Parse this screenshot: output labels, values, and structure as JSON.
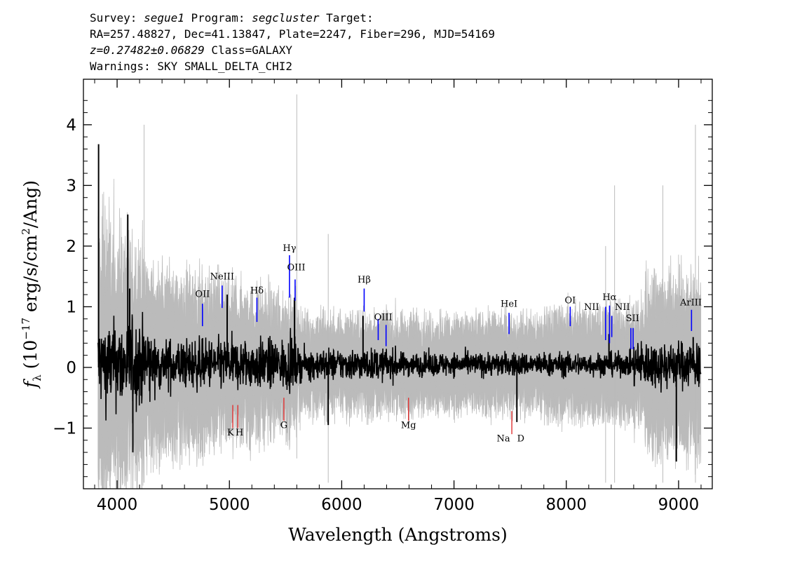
{
  "header": {
    "line1_a": "Survey: ",
    "line1_survey": "segue1",
    "line1_b": " Program: ",
    "line1_program": "segcluster",
    "line1_c": " Target:",
    "line2": "RA=257.48827, Dec=41.13847, Plate=2247, Fiber=296, MJD=54169",
    "line3_z": "z=0.27482±0.06829",
    "line3_class": " Class=GALAXY",
    "line4": "Warnings: SKY SMALL_DELTA_CHI2"
  },
  "chart_data": {
    "type": "line",
    "xlabel": "Wavelength (Angstroms)",
    "ylabel_f": "f",
    "ylabel_sub": "λ",
    "ylabel_rest_a": " (10",
    "ylabel_exp1": "−17",
    "ylabel_rest_b": " erg/s/cm",
    "ylabel_exp2": "2",
    "ylabel_rest_c": "/Ang)",
    "xlim": [
      3700,
      9300
    ],
    "ylim": [
      -2.0,
      4.75
    ],
    "x_ticks": [
      4000,
      5000,
      6000,
      7000,
      8000,
      9000
    ],
    "x_tick_labels": [
      "4000",
      "5000",
      "6000",
      "7000",
      "8000",
      "9000"
    ],
    "y_ticks": [
      -1,
      0,
      1,
      2,
      3,
      4
    ],
    "y_tick_labels": [
      "−1",
      "0",
      "1",
      "2",
      "3",
      "4"
    ],
    "spectrum_range": [
      3830,
      9200
    ],
    "series": [
      {
        "color": "#bbbbbb",
        "role": "error band"
      },
      {
        "color": "#000000",
        "role": "flux"
      }
    ],
    "spikes": [
      {
        "x": 3835,
        "y": 3.68
      },
      {
        "x": 4095,
        "y": 2.52
      },
      {
        "x": 4112,
        "y": 1.3
      },
      {
        "x": 4980,
        "y": 1.2
      },
      {
        "x": 5580,
        "y": 1.15
      },
      {
        "x": 6190,
        "y": 0.85
      },
      {
        "x": 8380,
        "y": 0.55
      },
      {
        "x": 9130,
        "y": 0.5
      },
      {
        "x": 4140,
        "y": -1.4
      },
      {
        "x": 5880,
        "y": -0.95
      },
      {
        "x": 8980,
        "y": -1.55
      },
      {
        "x": 7560,
        "y": -0.9
      }
    ],
    "emission_lines": [
      {
        "label": "OII",
        "x": 4760,
        "y0": 0.68,
        "y1": 1.05,
        "ty": 1.16
      },
      {
        "label": "NeIII",
        "x": 4935,
        "y0": 0.98,
        "y1": 1.35,
        "ty": 1.45
      },
      {
        "label": "Hδ",
        "x": 5245,
        "y0": 0.75,
        "y1": 1.15,
        "ty": 1.22
      },
      {
        "label": "Hγ",
        "x": 5535,
        "y0": 1.15,
        "y1": 1.85,
        "ty": 1.92
      },
      {
        "label": "OIII",
        "x": 5585,
        "y0": 1.1,
        "y1": 1.45,
        "ty": 1.6
      },
      {
        "label": "Hβ",
        "x": 6200,
        "y0": 0.92,
        "y1": 1.3,
        "ty": 1.4
      },
      {
        "label": "OIII",
        "x": 6325,
        "y0": 0.45,
        "y1": 0.8,
        "ty": 0.78
      },
      {
        "label": "OIII",
        "x": 6395,
        "y0": 0.35,
        "y1": 0.7,
        "ty": 0.78
      },
      {
        "label": "HeI",
        "x": 7490,
        "y0": 0.55,
        "y1": 0.9,
        "ty": 1.0
      },
      {
        "label": "OI",
        "x": 8035,
        "y0": 0.68,
        "y1": 1.0,
        "ty": 1.06
      },
      {
        "label": "NII",
        "x": 8350,
        "y0": 0.45,
        "y1": 1.0,
        "ty": 0.95
      },
      {
        "label": "Hα",
        "x": 8385,
        "y0": 0.4,
        "y1": 1.02,
        "ty": 1.11
      },
      {
        "label": "NII",
        "x": 8405,
        "y0": 0.5,
        "y1": 0.85,
        "ty": 0.95
      },
      {
        "label": "SII",
        "x": 8575,
        "y0": 0.3,
        "y1": 0.65,
        "ty": 0.76
      },
      {
        "label": "SII",
        "x": 8595,
        "y0": 0.3,
        "y1": 0.65,
        "ty": 0.76
      },
      {
        "label": "ArIII",
        "x": 9115,
        "y0": 0.6,
        "y1": 0.95,
        "ty": 1.02
      }
    ],
    "emission_label_positions": [
      {
        "text": "OII",
        "x": 4760
      },
      {
        "text": "NeIII",
        "x": 4935
      },
      {
        "text": "Hδ",
        "x": 5245
      },
      {
        "text": "Hγ",
        "x": 5535
      },
      {
        "text": "OIII",
        "x": 5595
      },
      {
        "text": "Hβ",
        "x": 6200
      },
      {
        "text": "OIII",
        "x": 6370
      },
      {
        "text": "HeI",
        "x": 7490
      },
      {
        "text": "OI",
        "x": 8035
      },
      {
        "text": "NII",
        "x": 8225
      },
      {
        "text": "Hα",
        "x": 8385
      },
      {
        "text": "NII",
        "x": 8500
      },
      {
        "text": "SII",
        "x": 8590
      },
      {
        "text": "ArIII",
        "x": 9110
      }
    ],
    "absorption_lines": [
      {
        "label": "K",
        "x": 5030,
        "y0": -1.0,
        "y1": -0.62
      },
      {
        "label": "H",
        "x": 5075,
        "y0": -1.0,
        "y1": -0.62
      },
      {
        "label": "G",
        "x": 5485,
        "y0": -0.88,
        "y1": -0.5
      },
      {
        "label": "Mg",
        "x": 6595,
        "y0": -0.88,
        "y1": -0.5
      },
      {
        "label": "Na D",
        "x": 7515,
        "y0": -1.1,
        "y1": -0.72
      }
    ],
    "absorption_label_positions": [
      {
        "text": "K",
        "x": 5010,
        "y": -1.12
      },
      {
        "text": "H",
        "x": 5090,
        "y": -1.12
      },
      {
        "text": "G",
        "x": 5485,
        "y": -1.0
      },
      {
        "text": "Mg",
        "x": 6595,
        "y": -1.0
      },
      {
        "text": "Na",
        "x": 7440,
        "y": -1.22
      },
      {
        "text": "D",
        "x": 7595,
        "y": -1.22
      }
    ],
    "emission_color": "#0000ff",
    "absorption_color": "#e03030"
  }
}
